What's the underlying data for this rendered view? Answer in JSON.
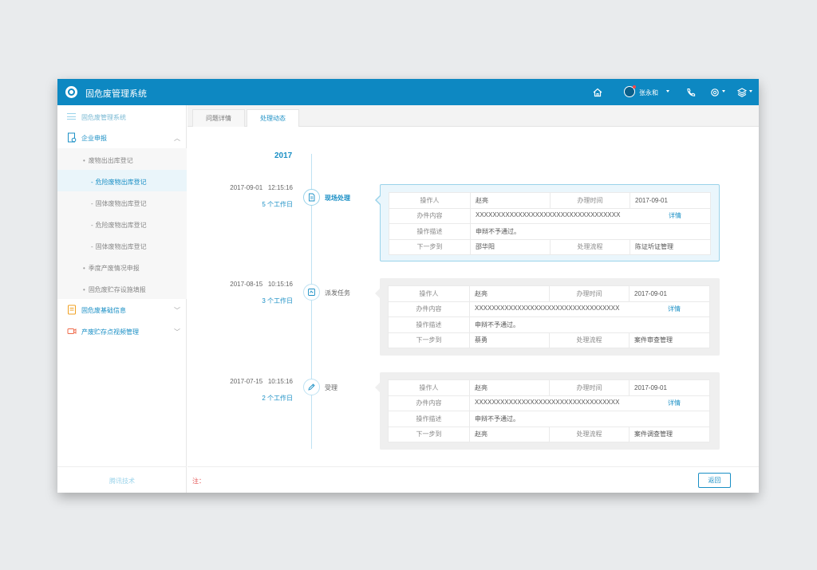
{
  "app": {
    "title": "固危废管理系统"
  },
  "header": {
    "user_name": "张永和"
  },
  "sidebar": {
    "head_label": "固危废管理系统",
    "sections": [
      {
        "label": "企业申报"
      },
      {
        "label": "固危废基础信息"
      },
      {
        "label": "产废贮存点视频管理"
      }
    ],
    "sub_items": [
      "废物出出库登记",
      "季度产废情况申报",
      "固危废贮存设施填报"
    ],
    "leaf_items": [
      "危险废物出库登记",
      "固体废物出库登记",
      "危险废物出库登记",
      "固体废物出库登记"
    ],
    "footer": "腾讯技术"
  },
  "tabs": [
    {
      "label": "问题详情"
    },
    {
      "label": "处理动态"
    }
  ],
  "timeline": {
    "year": "2017",
    "entries": [
      {
        "date": "2017-09-01",
        "time": "12:15:16",
        "days": "5 个工作日",
        "stage": "现场处理",
        "operator_label": "操作人",
        "operator": "赵亮",
        "handle_time_label": "办理时间",
        "handle_time": "2017-09-01",
        "content_label": "办件内容",
        "content": "XXXXXXXXXXXXXXXXXXXXXXXXXXXXXXXXXX",
        "detail": "详情",
        "desc_label": "操作描述",
        "desc": "申辩不予通过。",
        "next_label": "下一步到",
        "next": "邵华阳",
        "flow_label": "处理流程",
        "flow": "陈证圻证管理"
      },
      {
        "date": "2017-08-15",
        "time": "10:15:16",
        "days": "3 个工作日",
        "stage": "派发任务",
        "operator_label": "操作人",
        "operator": "赵亮",
        "handle_time_label": "办理时间",
        "handle_time": "2017-09-01",
        "content_label": "办件内容",
        "content": "XXXXXXXXXXXXXXXXXXXXXXXXXXXXXXXXXX",
        "detail": "详情",
        "desc_label": "操作描述",
        "desc": "申辩不予通过。",
        "next_label": "下一步到",
        "next": "蔡勇",
        "flow_label": "处理流程",
        "flow": "案件审查管理"
      },
      {
        "date": "2017-07-15",
        "time": "10:15:16",
        "days": "2 个工作日",
        "stage": "受理",
        "operator_label": "操作人",
        "operator": "赵亮",
        "handle_time_label": "办理时间",
        "handle_time": "2017-09-01",
        "content_label": "办件内容",
        "content": "XXXXXXXXXXXXXXXXXXXXXXXXXXXXXXXXXX",
        "detail": "详情",
        "desc_label": "操作描述",
        "desc": "申辩不予通过。",
        "next_label": "下一步到",
        "next": "赵亮",
        "flow_label": "处理流程",
        "flow": "案件调查管理"
      }
    ]
  },
  "footer": {
    "note_label": "注：",
    "back_label": "返回"
  },
  "icons": {
    "logo": "logo-icon",
    "home": "home-icon",
    "user": "avatar",
    "phone": "phone-icon",
    "settings": "gear-icon",
    "layers": "layers-icon",
    "document": "document-icon",
    "dispatch": "dispatch-icon",
    "edit": "pencil-icon"
  },
  "colors": {
    "brand": "#0d88c2",
    "accent": "#1a8fc5",
    "note": "#e35050"
  }
}
